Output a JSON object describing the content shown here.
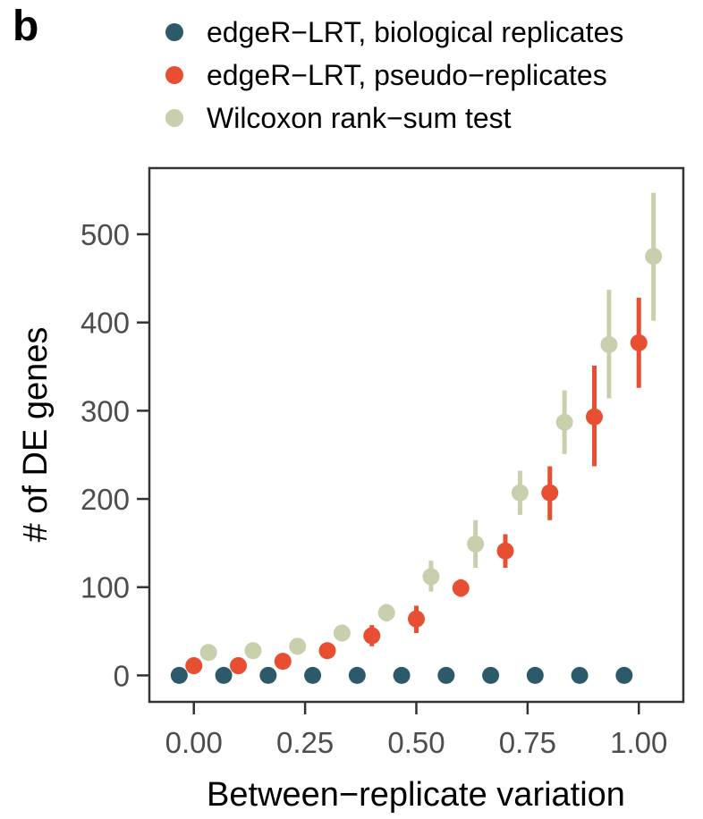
{
  "panel_label": "b",
  "colors": {
    "biological": "#2d5a6b",
    "pseudo": "#e84e31",
    "wilcoxon": "#c8cfad",
    "axis": "#333333",
    "tick_text": "#4d4d4d"
  },
  "chart_data": {
    "type": "scatter",
    "title": "",
    "xlabel": "Between−replicate variation",
    "ylabel": "# of DE genes",
    "xlim": [
      -0.1,
      1.1
    ],
    "ylim": [
      -30,
      575
    ],
    "xticks": [
      0.0,
      0.25,
      0.5,
      0.75,
      1.0
    ],
    "xtick_labels": [
      "0.00",
      "0.25",
      "0.50",
      "0.75",
      "1.00"
    ],
    "yticks": [
      0,
      100,
      200,
      300,
      400,
      500
    ],
    "ytick_labels": [
      "0",
      "100",
      "200",
      "300",
      "400",
      "500"
    ],
    "grid": false,
    "legend_position": "top",
    "series": [
      {
        "name": "edgeR−LRT, biological replicates",
        "color_key": "biological",
        "dodge": -0.033,
        "points": [
          {
            "x": 0.0,
            "y": 0
          },
          {
            "x": 0.1,
            "y": 0
          },
          {
            "x": 0.2,
            "y": 0
          },
          {
            "x": 0.3,
            "y": 0
          },
          {
            "x": 0.4,
            "y": 0
          },
          {
            "x": 0.5,
            "y": 0
          },
          {
            "x": 0.6,
            "y": 0
          },
          {
            "x": 0.7,
            "y": 0
          },
          {
            "x": 0.8,
            "y": 0
          },
          {
            "x": 0.9,
            "y": 0
          },
          {
            "x": 1.0,
            "y": 0
          }
        ]
      },
      {
        "name": "edgeR−LRT, pseudo−replicates",
        "color_key": "pseudo",
        "dodge": 0.0,
        "points": [
          {
            "x": 0.0,
            "y": 11,
            "lo": 9,
            "hi": 13
          },
          {
            "x": 0.1,
            "y": 11,
            "lo": 9,
            "hi": 13
          },
          {
            "x": 0.2,
            "y": 16,
            "lo": 13,
            "hi": 19
          },
          {
            "x": 0.3,
            "y": 28,
            "lo": 23,
            "hi": 33
          },
          {
            "x": 0.4,
            "y": 45,
            "lo": 33,
            "hi": 57
          },
          {
            "x": 0.5,
            "y": 64,
            "lo": 48,
            "hi": 79
          },
          {
            "x": 0.6,
            "y": 99,
            "lo": 89,
            "hi": 109
          },
          {
            "x": 0.7,
            "y": 141,
            "lo": 122,
            "hi": 160
          },
          {
            "x": 0.8,
            "y": 207,
            "lo": 176,
            "hi": 237
          },
          {
            "x": 0.9,
            "y": 293,
            "lo": 237,
            "hi": 351
          },
          {
            "x": 1.0,
            "y": 377,
            "lo": 326,
            "hi": 428
          }
        ]
      },
      {
        "name": "Wilcoxon rank−sum test",
        "color_key": "wilcoxon",
        "dodge": 0.033,
        "points": [
          {
            "x": 0.0,
            "y": 26,
            "lo": 24,
            "hi": 28
          },
          {
            "x": 0.1,
            "y": 28,
            "lo": 26,
            "hi": 30
          },
          {
            "x": 0.2,
            "y": 33,
            "lo": 30,
            "hi": 36
          },
          {
            "x": 0.3,
            "y": 48,
            "lo": 44,
            "hi": 52
          },
          {
            "x": 0.4,
            "y": 71,
            "lo": 61,
            "hi": 81
          },
          {
            "x": 0.5,
            "y": 112,
            "lo": 95,
            "hi": 130
          },
          {
            "x": 0.6,
            "y": 149,
            "lo": 122,
            "hi": 176
          },
          {
            "x": 0.7,
            "y": 207,
            "lo": 182,
            "hi": 232
          },
          {
            "x": 0.8,
            "y": 287,
            "lo": 251,
            "hi": 323
          },
          {
            "x": 0.9,
            "y": 375,
            "lo": 314,
            "hi": 437
          },
          {
            "x": 1.0,
            "y": 475,
            "lo": 402,
            "hi": 547
          }
        ]
      }
    ]
  }
}
